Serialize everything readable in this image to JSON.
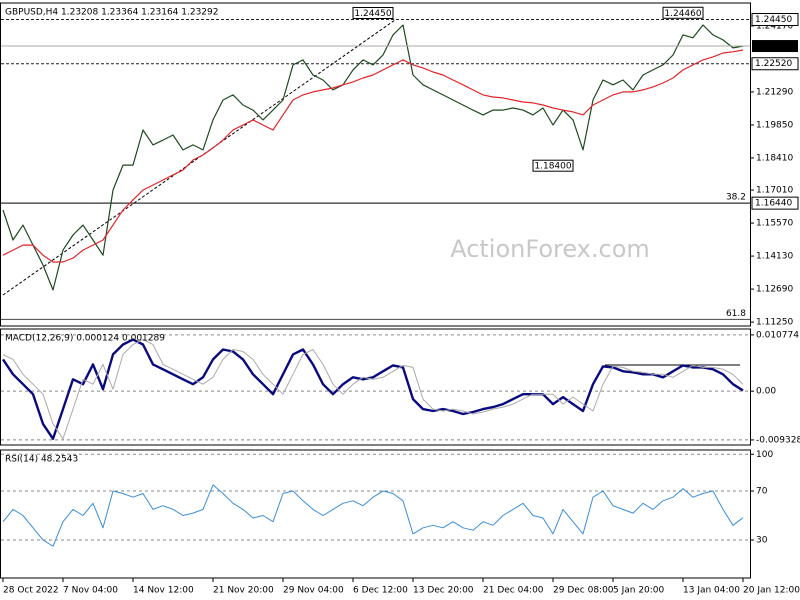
{
  "watermark": "ActionForex.com",
  "chart_data": [
    {
      "type": "line",
      "title": "GBPUSD,H4 1.23208 1.23364 1.23164 1.23292",
      "xlim": [
        -0.3,
        74.7
      ],
      "ylim": [
        1.1108,
        1.2517
      ],
      "yticks": [
        {
          "value": 1.2417,
          "label": "1.24170"
        },
        {
          "value": 1.2129,
          "label": "1.21290"
        },
        {
          "value": 1.1985,
          "label": "1.19850"
        },
        {
          "value": 1.1841,
          "label": "1.18410"
        },
        {
          "value": 1.1701,
          "label": "1.17010"
        },
        {
          "value": 1.1557,
          "label": "1.15570"
        },
        {
          "value": 1.1413,
          "label": "1.14130"
        },
        {
          "value": 1.1269,
          "label": "1.12690"
        },
        {
          "value": 1.1125,
          "label": "1.11250"
        }
      ],
      "grid": false,
      "last_price_box": true,
      "series": [
        {
          "name": "GBPUSD",
          "color": "#1e4a1e",
          "width": 1.2,
          "values": [
            1.1614,
            1.1483,
            1.1548,
            1.1461,
            1.1374,
            1.1265,
            1.1439,
            1.1505,
            1.1548,
            1.1483,
            1.1417,
            1.1701,
            1.181,
            1.181,
            1.1963,
            1.1898,
            1.1919,
            1.1941,
            1.1876,
            1.1898,
            1.1876,
            1.2007,
            1.2094,
            1.2116,
            1.2072,
            1.205,
            1.2007,
            1.205,
            1.2094,
            1.2247,
            1.2269,
            1.2203,
            1.2181,
            1.2138,
            1.216,
            1.2225,
            1.2269,
            1.2247,
            1.229,
            1.2378,
            1.2421,
            1.2203,
            1.216,
            1.2138,
            1.2116,
            1.2094,
            1.2072,
            1.205,
            1.2029,
            1.205,
            1.205,
            1.2059,
            1.205,
            1.2029,
            1.2059,
            1.1985,
            1.205,
            1.2007,
            1.1876,
            1.2094,
            1.2181,
            1.216,
            1.2181,
            1.2138,
            1.2203,
            1.2225,
            1.2247,
            1.229,
            1.2378,
            1.2365,
            1.2421,
            1.2378,
            1.2356,
            1.2321,
            1.23292
          ]
        },
        {
          "name": "MA",
          "color": "#e0262b",
          "width": 1.2,
          "values": [
            1.1417,
            1.1439,
            1.1461,
            1.1461,
            1.1417,
            1.1387,
            1.1387,
            1.1404,
            1.1439,
            1.1461,
            1.1483,
            1.1548,
            1.1614,
            1.1658,
            1.1701,
            1.1723,
            1.1745,
            1.1767,
            1.1788,
            1.1832,
            1.1854,
            1.1885,
            1.1919,
            1.1963,
            1.1985,
            1.2007,
            1.1985,
            1.1963,
            1.2029,
            1.2094,
            1.2116,
            1.2129,
            1.2138,
            1.2146,
            1.216,
            1.2173,
            1.219,
            1.2203,
            1.2225,
            1.2247,
            1.2269,
            1.2247,
            1.2234,
            1.2216,
            1.2203,
            1.2181,
            1.216,
            1.2138,
            1.2116,
            1.2107,
            1.2103,
            1.2094,
            1.2085,
            1.2081,
            1.2072,
            1.2059,
            1.205,
            1.2042,
            1.2029,
            1.2072,
            1.2094,
            1.2116,
            1.2129,
            1.2129,
            1.2138,
            1.2151,
            1.2168,
            1.219,
            1.2225,
            1.2247,
            1.2269,
            1.2282,
            1.2299,
            1.2304,
            1.2312
          ]
        }
      ],
      "levels": [
        {
          "value": 1.2445,
          "label": "1.24450",
          "dashed": true
        },
        {
          "value": 1.2252,
          "label": "1.22520",
          "dashed": true
        },
        {
          "value": 1.1644,
          "label": "1.16440",
          "dashed": false
        }
      ],
      "fib": [
        {
          "ratio": 38.2,
          "value": 1.1644
        },
        {
          "ratio": 61.8,
          "value": 1.1137
        }
      ],
      "annotations": [
        {
          "text": "1.24450",
          "index": 37,
          "value": 1.2445,
          "position": "above"
        },
        {
          "text": "1.24460",
          "index": 68,
          "value": 1.2446,
          "position": "above"
        },
        {
          "text": "1.18400",
          "index": 55,
          "value": 1.184,
          "position": "below"
        }
      ]
    },
    {
      "type": "line",
      "title": "MACD(12,26,9) 0.000124 0.001289",
      "xlim": [
        -0.3,
        74.7
      ],
      "ylim": [
        -0.0103,
        0.0119
      ],
      "yticks": [
        0.010774,
        {
          "value": 0,
          "label": "0.00"
        },
        -0.009328
      ],
      "grid": true,
      "series": [
        {
          "name": "MACD",
          "color": "#0a0a80",
          "width": 2.4,
          "values": [
            0.00608,
            0.00323,
            0.00133,
            -0.00057,
            -0.00627,
            -0.00912,
            -0.00342,
            0.00228,
            0.00133,
            0.00513,
            0.00038,
            0.00703,
            0.00893,
            0.00988,
            0.00893,
            0.00513,
            0.00418,
            0.00323,
            0.00228,
            0.00133,
            0.00266,
            0.00608,
            0.00798,
            0.0076,
            0.00608,
            0.00323,
            0.00133,
            -0.00057,
            0.00323,
            0.00703,
            0.00798,
            0.00513,
            0.00133,
            -0.00057,
            0.00133,
            0.00266,
            0.00228,
            0.00266,
            0.0038,
            0.00494,
            0.00456,
            -0.00152,
            -0.00342,
            -0.0038,
            -0.00342,
            -0.0038,
            -0.00437,
            -0.00399,
            -0.00342,
            -0.00304,
            -0.00247,
            -0.00152,
            -0.00057,
            -0.00057,
            -0.00057,
            -0.00247,
            -0.00114,
            -0.00247,
            -0.0038,
            0.00133,
            0.00475,
            0.00456,
            0.0038,
            0.00361,
            0.00323,
            0.00323,
            0.00266,
            0.0038,
            0.00494,
            0.00456,
            0.00456,
            0.00418,
            0.00323,
            0.00133,
            0.000124
          ]
        },
        {
          "name": "Signal",
          "color": "#aaaaaa",
          "width": 1,
          "values": [
            0.007,
            0.00608,
            0.00323,
            0.00133,
            -0.00057,
            -0.00627,
            -0.00912,
            -0.00342,
            0.00228,
            0.00133,
            0.00513,
            0.00038,
            0.00703,
            0.00893,
            0.00988,
            0.00893,
            0.00513,
            0.00418,
            0.00323,
            0.00228,
            0.00133,
            0.00266,
            0.00608,
            0.00798,
            0.0076,
            0.00608,
            0.00323,
            0.00133,
            -0.00057,
            0.00323,
            0.00703,
            0.00798,
            0.00513,
            0.00133,
            -0.00057,
            0.00133,
            0.00266,
            0.00228,
            0.00266,
            0.0038,
            0.00494,
            0.00456,
            -0.00152,
            -0.00342,
            -0.0038,
            -0.00342,
            -0.0038,
            -0.00437,
            -0.00399,
            -0.00342,
            -0.00304,
            -0.00247,
            -0.00152,
            -0.00057,
            -0.00057,
            -0.00057,
            -0.00247,
            -0.00114,
            -0.00247,
            -0.0038,
            0.00133,
            0.00475,
            0.00456,
            0.0038,
            0.00361,
            0.00323,
            0.00323,
            0.00266,
            0.0038,
            0.00494,
            0.00456,
            0.00456,
            0.00418,
            0.00323,
            0.001289
          ]
        }
      ]
    },
    {
      "type": "line",
      "title": "RSI(14) 48.2543",
      "xlim": [
        -0.3,
        74.7
      ],
      "ylim": [
        -1,
        103.5
      ],
      "yticks": [
        100,
        70,
        30
      ],
      "grid": true,
      "series": [
        {
          "name": "RSI",
          "color": "#3a8ed8",
          "width": 1,
          "values": [
            45,
            55,
            50,
            40,
            30,
            25,
            45,
            55,
            50,
            60,
            40,
            70,
            68,
            65,
            68,
            55,
            58,
            55,
            50,
            52,
            55,
            75,
            68,
            60,
            55,
            48,
            50,
            45,
            68,
            70,
            62,
            55,
            50,
            55,
            60,
            62,
            58,
            65,
            70,
            68,
            62,
            35,
            40,
            42,
            40,
            45,
            40,
            38,
            45,
            42,
            50,
            55,
            60,
            50,
            48,
            35,
            55,
            45,
            35,
            65,
            70,
            58,
            55,
            52,
            60,
            55,
            62,
            65,
            72,
            65,
            68,
            70,
            55,
            42,
            48.2543
          ]
        }
      ],
      "xticks": [
        {
          "value": 0,
          "label": "28 Oct 2022"
        },
        {
          "value": 6,
          "label": "7 Nov 04:00"
        },
        {
          "value": 13,
          "label": "14 Nov 12:00"
        },
        {
          "value": 21,
          "label": "21 Nov 20:00"
        },
        {
          "value": 28,
          "label": "29 Nov 04:00"
        },
        {
          "value": 35,
          "label": "6 Dec 12:00"
        },
        {
          "value": 41,
          "label": "13 Dec 20:00"
        },
        {
          "value": 48,
          "label": "21 Dec 04:00"
        },
        {
          "value": 55,
          "label": "29 Dec 08:00"
        },
        {
          "value": 61,
          "label": "5 Jan 20:00"
        },
        {
          "value": 68,
          "label": "13 Jan 04:00"
        },
        {
          "value": 74,
          "label": "20 Jan 12:00"
        }
      ]
    }
  ]
}
